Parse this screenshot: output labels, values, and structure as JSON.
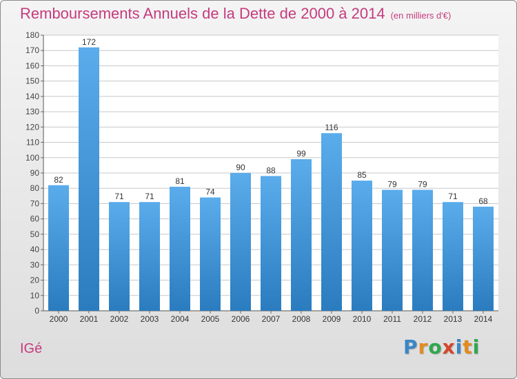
{
  "header": {
    "title": "Remboursements Annuels de la Dette de 2000 à 2014",
    "subtitle": "(en milliers d'€)"
  },
  "footer": {
    "commune": "IGé",
    "logo_text": "Proxiti"
  },
  "colors": {
    "title": "#c53b7e",
    "bar_top": "#5aaceb",
    "bar_bottom": "#2a7cbf",
    "grid": "#c8c8c8",
    "logo_letters": [
      "#3b86c6",
      "#e48a1e",
      "#2fa84f",
      "#d6452b",
      "#3b86c6",
      "#e48a1e",
      "#2fa84f"
    ]
  },
  "chart_data": {
    "type": "bar",
    "title": "Remboursements Annuels de la Dette de 2000 à 2014",
    "subtitle": "(en milliers d'€)",
    "xlabel": "",
    "ylabel": "",
    "categories": [
      "2000",
      "2001",
      "2002",
      "2003",
      "2004",
      "2005",
      "2006",
      "2007",
      "2008",
      "2009",
      "2010",
      "2011",
      "2012",
      "2013",
      "2014"
    ],
    "values": [
      82,
      172,
      71,
      71,
      81,
      74,
      90,
      88,
      99,
      116,
      85,
      79,
      79,
      71,
      68
    ],
    "ylim": [
      0,
      180
    ],
    "yticks": [
      0,
      10,
      20,
      30,
      40,
      50,
      60,
      70,
      80,
      90,
      100,
      110,
      120,
      130,
      140,
      150,
      160,
      170,
      180
    ],
    "grid": true,
    "legend": "none"
  }
}
